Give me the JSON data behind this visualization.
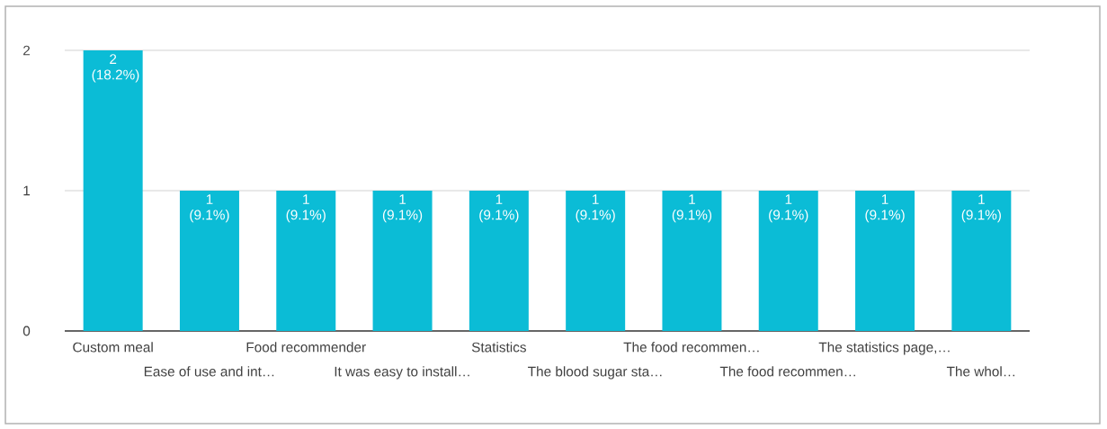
{
  "chart_data": {
    "type": "bar",
    "categories": [
      "Custom meal",
      "Ease of use and int…",
      "Food recommender",
      "It was easy to install…",
      "Statistics",
      "The blood sugar sta…",
      "The food recommen…",
      "The food recommen…",
      "The statistics page,…",
      "The whol…"
    ],
    "values": [
      2,
      1,
      1,
      1,
      1,
      1,
      1,
      1,
      1,
      1
    ],
    "value_labels": [
      "2 (18.2%)",
      "1 (9.1%)",
      "1 (9.1%)",
      "1 (9.1%)",
      "1 (9.1%)",
      "1 (9.1%)",
      "1 (9.1%)",
      "1 (9.1%)",
      "1 (9.1%)",
      "1 (9.1%)"
    ],
    "color": "#0bbcd6",
    "ylim": [
      0,
      2
    ],
    "yticks": [
      0,
      1,
      2
    ],
    "grid": "y"
  }
}
